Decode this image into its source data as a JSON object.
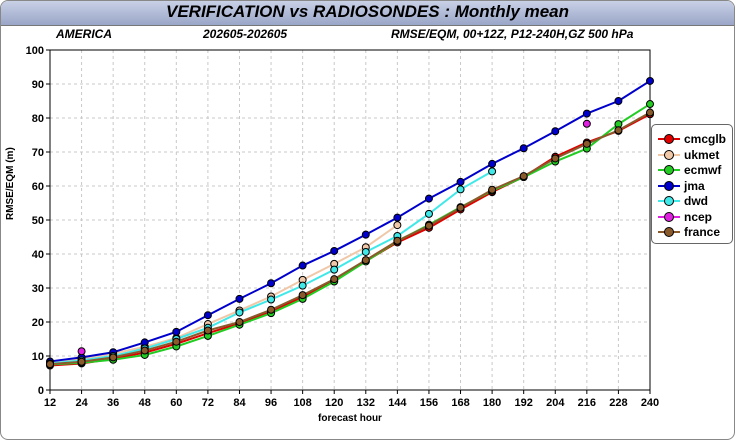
{
  "header": {
    "title": "VERIFICATION vs RADIOSONDES : Monthly mean",
    "region": "AMERICA",
    "period": "202605-202605",
    "description": "RMSE/EQM, 00+12Z, P12-240H,GZ 500 hPa"
  },
  "chart_data": {
    "type": "line",
    "xlabel": "forecast hour",
    "ylabel": "RMSE/EQM (m)",
    "x": [
      12,
      24,
      36,
      48,
      60,
      72,
      84,
      96,
      108,
      120,
      132,
      144,
      156,
      168,
      180,
      192,
      204,
      216,
      228,
      240
    ],
    "ylim": [
      0,
      100
    ],
    "yticks": [
      0,
      10,
      20,
      30,
      40,
      50,
      60,
      70,
      80,
      90,
      100
    ],
    "grid": true,
    "legend_position": "right",
    "series": [
      {
        "name": "cmcglb",
        "color": "#e00000",
        "values": [
          7.2,
          7.8,
          9.2,
          11.0,
          13.6,
          16.7,
          19.6,
          23.0,
          27.4,
          32.2,
          37.9,
          43.4,
          47.7,
          53.1,
          58.2,
          62.7,
          68.6,
          72.8,
          76.2,
          81.1
        ]
      },
      {
        "name": "ukmet",
        "color": "#f0c8a8",
        "values": [
          8.0,
          9.2,
          10.7,
          12.7,
          15.3,
          19.4,
          23.4,
          27.5,
          32.4,
          37.1,
          42.0,
          48.5,
          null,
          null,
          null,
          null,
          null,
          null,
          null,
          null
        ]
      },
      {
        "name": "ecmwf",
        "color": "#22cc22",
        "values": [
          7.5,
          8.0,
          8.9,
          10.3,
          12.8,
          15.9,
          19.2,
          22.6,
          26.8,
          31.9,
          37.8,
          43.8,
          48.6,
          53.8,
          58.6,
          62.6,
          67.2,
          71.0,
          78.2,
          84.1
        ]
      },
      {
        "name": "jma",
        "color": "#0000cc",
        "values": [
          8.4,
          9.6,
          11.1,
          14.0,
          17.1,
          22.0,
          26.8,
          31.4,
          36.6,
          40.9,
          45.7,
          50.7,
          56.3,
          61.2,
          66.5,
          71.1,
          76.1,
          81.3,
          85.0,
          90.9
        ]
      },
      {
        "name": "dwd",
        "color": "#40e8e8",
        "values": [
          7.8,
          8.7,
          10.0,
          12.2,
          15.0,
          18.3,
          22.8,
          26.6,
          30.7,
          35.4,
          40.6,
          45.3,
          51.8,
          59.0,
          64.3,
          null,
          null,
          null,
          null,
          null
        ]
      },
      {
        "name": "ncep",
        "color": "#e020e0",
        "values": [
          null,
          11.4,
          null,
          null,
          null,
          null,
          null,
          null,
          null,
          null,
          null,
          null,
          null,
          null,
          null,
          null,
          null,
          78.3,
          null,
          null
        ]
      },
      {
        "name": "france",
        "color": "#8b5a2b",
        "values": [
          7.6,
          8.3,
          9.6,
          11.6,
          14.2,
          17.5,
          20.0,
          23.6,
          27.9,
          32.6,
          38.2,
          43.9,
          48.3,
          53.6,
          58.9,
          62.9,
          68.1,
          72.4,
          76.4,
          81.6
        ]
      }
    ]
  }
}
